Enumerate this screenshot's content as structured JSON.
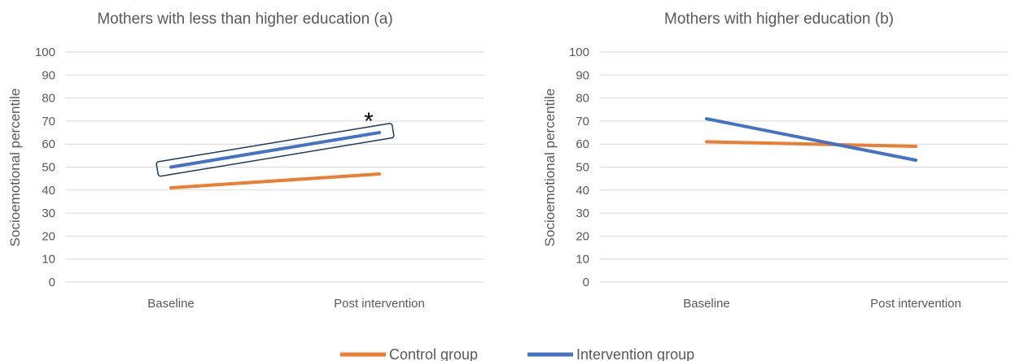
{
  "legend": [
    {
      "name": "Control group",
      "color": "#ed7d31"
    },
    {
      "name": "Intervention group",
      "color": "#4472c4"
    }
  ],
  "chart_data": [
    {
      "type": "line",
      "title": "Mothers with less than higher education (a)",
      "xlabel": "",
      "ylabel": "Socioemotional percentile",
      "categories": [
        "Baseline",
        "Post intervention"
      ],
      "ylim": [
        0,
        100
      ],
      "yticks": [
        "0",
        "10",
        "20",
        "30",
        "40",
        "50",
        "60",
        "70",
        "80",
        "90",
        "100"
      ],
      "grid": true,
      "legend_position": "bottom",
      "series": [
        {
          "name": "Control group",
          "values": [
            41,
            47
          ],
          "color": "#ed7d31"
        },
        {
          "name": "Intervention group",
          "values": [
            50,
            65
          ],
          "color": "#4472c4"
        }
      ],
      "annotation": {
        "text": "*",
        "series": "Intervention group",
        "boxed": true
      }
    },
    {
      "type": "line",
      "title": "Mothers with higher education (b)",
      "xlabel": "",
      "ylabel": "Socioemotional percentile",
      "categories": [
        "Baseline",
        "Post intervention"
      ],
      "ylim": [
        0,
        100
      ],
      "yticks": [
        "0",
        "10",
        "20",
        "30",
        "40",
        "50",
        "60",
        "70",
        "80",
        "90",
        "100"
      ],
      "grid": true,
      "legend_position": "bottom",
      "series": [
        {
          "name": "Control group",
          "values": [
            61,
            59
          ],
          "color": "#ed7d31"
        },
        {
          "name": "Intervention group",
          "values": [
            71,
            53
          ],
          "color": "#4472c4"
        }
      ]
    }
  ]
}
